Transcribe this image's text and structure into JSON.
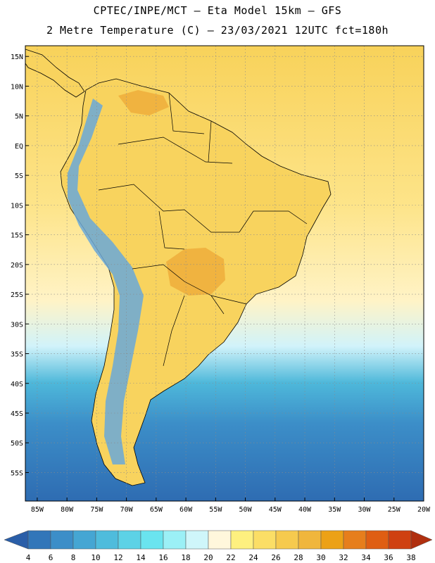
{
  "header": {
    "line1": "CPTEC/INPE/MCT –  Eta Model 15km – GFS",
    "line2": "2 Metre Temperature (C) – 23/03/2021 12UTC fct=180h"
  },
  "axes": {
    "lat_labels": [
      "15N",
      "10N",
      "5N",
      "EQ",
      "5S",
      "10S",
      "15S",
      "20S",
      "25S",
      "30S",
      "35S",
      "40S",
      "45S",
      "50S",
      "55S"
    ],
    "lat_values": [
      15,
      10,
      5,
      0,
      -5,
      -10,
      -15,
      -20,
      -25,
      -30,
      -35,
      -40,
      -45,
      -50,
      -55
    ],
    "lon_labels": [
      "85W",
      "80W",
      "75W",
      "70W",
      "65W",
      "60W",
      "55W",
      "50W",
      "45W",
      "40W",
      "35W",
      "30W",
      "25W",
      "20W"
    ],
    "lon_values": [
      -85,
      -80,
      -75,
      -70,
      -65,
      -60,
      -55,
      -50,
      -45,
      -40,
      -35,
      -30,
      -25,
      -20
    ]
  },
  "colorbar": {
    "labels": [
      "4",
      "6",
      "8",
      "10",
      "12",
      "14",
      "16",
      "18",
      "20",
      "22",
      "24",
      "26",
      "28",
      "30",
      "32",
      "34",
      "36",
      "38"
    ],
    "colors": [
      "#2a5ea8",
      "#3276b9",
      "#3c8ec8",
      "#45a6d3",
      "#4fbcdc",
      "#5dd2e6",
      "#6ae4ef",
      "#9bf0f6",
      "#cff6fa",
      "#fff7dc",
      "#fef07f",
      "#fbde66",
      "#f6ca4e",
      "#f0b63c",
      "#eca116",
      "#e67e1c",
      "#df5e13",
      "#cf4011",
      "#b02f0f"
    ]
  },
  "colors": {
    "ocean_tropical": "#f8d25a",
    "ocean_warm": "#fde489",
    "ocean_mild": "#fff3c6",
    "ocean_cool": "#d1f3fa",
    "ocean_cold": "#4eb8da",
    "ocean_colder": "#3c8ec8",
    "ocean_coldest": "#2e6cb2",
    "land_warm": "#f8d35e",
    "land_hot": "#f0b340",
    "andes": "#6aa8d8"
  }
}
